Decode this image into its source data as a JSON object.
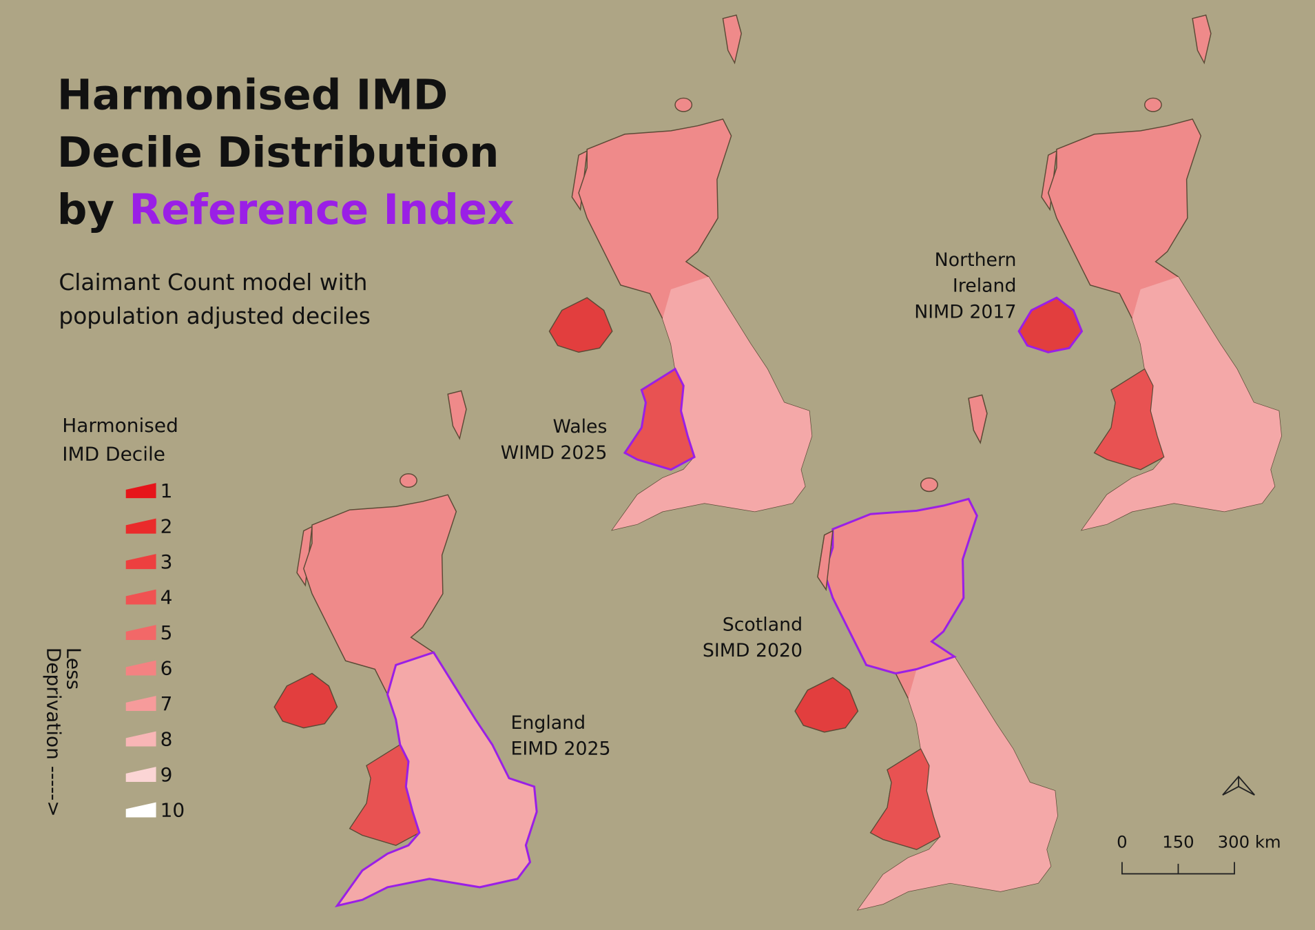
{
  "title": {
    "line1": "Harmonised IMD",
    "line2": "Decile Distribution",
    "line3_prefix": "by",
    "line3_highlight": "Reference Index"
  },
  "subtitle": [
    "Claimant Count model with",
    "population adjusted deciles"
  ],
  "legend": {
    "title": [
      "Harmonised",
      "IMD Decile"
    ],
    "items": [
      {
        "label": 1,
        "color": "#e6141a"
      },
      {
        "label": 2,
        "color": "#ea2b2b"
      },
      {
        "label": 3,
        "color": "#ed3f3f"
      },
      {
        "label": 4,
        "color": "#f05252"
      },
      {
        "label": 5,
        "color": "#f26868"
      },
      {
        "label": 6,
        "color": "#f48282"
      },
      {
        "label": 7,
        "color": "#f69b9b"
      },
      {
        "label": 8,
        "color": "#f8b6b6"
      },
      {
        "label": 9,
        "color": "#fbd5d5"
      },
      {
        "label": 10,
        "color": "#ffffff"
      }
    ],
    "note": [
      "Less",
      "Deprivation ----->"
    ]
  },
  "maps": [
    {
      "label": [
        "Wales",
        "WIMD 2025"
      ]
    },
    {
      "label": [
        "Northern",
        "Ireland",
        "NIMD 2017"
      ]
    },
    {
      "label": [
        "England",
        "EIMD 2025"
      ]
    },
    {
      "label": [
        "Scotland",
        "SIMD 2020"
      ]
    }
  ],
  "scale_bar": {
    "labels": [
      "0",
      "150",
      "300 km"
    ]
  }
}
